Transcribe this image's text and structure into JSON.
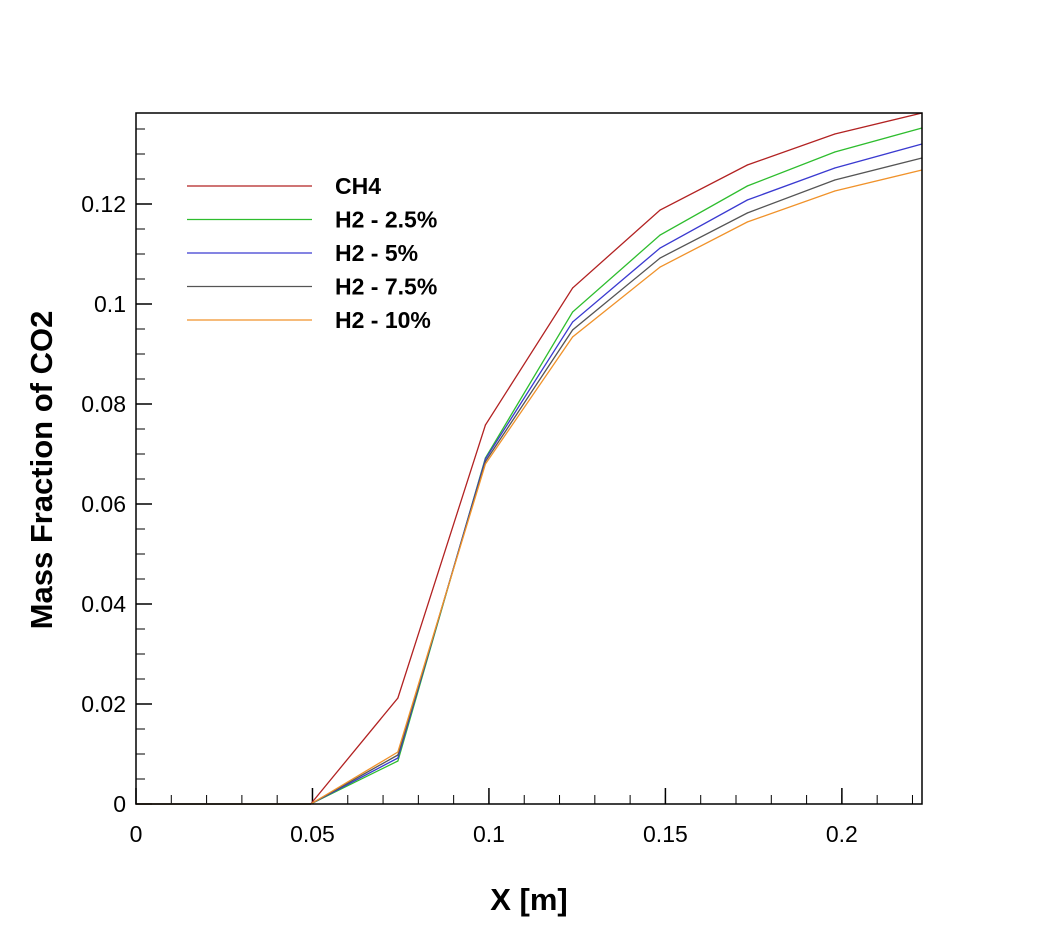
{
  "chart_data": {
    "type": "line",
    "title": "",
    "xlabel": "X [m]",
    "ylabel": "Mass Fraction of CO2",
    "xlim": [
      0,
      0.2227
    ],
    "ylim": [
      0,
      0.1382
    ],
    "grid": false,
    "legend_position": "top-left",
    "x_ticks": [
      0,
      0.05,
      0.1,
      0.15,
      0.2
    ],
    "x_tick_labels": [
      "0",
      "0.05",
      "0.1",
      "0.15",
      "0.2"
    ],
    "y_ticks": [
      0,
      0.02,
      0.04,
      0.06,
      0.08,
      0.1,
      0.12
    ],
    "y_tick_labels": [
      "0",
      "0.02",
      "0.04",
      "0.06",
      "0.08",
      "0.1",
      "0.12"
    ],
    "x": [
      0,
      0.0495,
      0.0742,
      0.099,
      0.1237,
      0.1485,
      0.1732,
      0.198,
      0.2227
    ],
    "series": [
      {
        "name": "CH4",
        "color": "#b22222",
        "values": [
          0,
          0,
          0.0212,
          0.0758,
          0.1032,
          0.1188,
          0.1278,
          0.134,
          0.1382
        ]
      },
      {
        "name": "H2 - 2.5%",
        "color": "#2ebd2e",
        "values": [
          0,
          0,
          0.0086,
          0.0692,
          0.0984,
          0.1138,
          0.1236,
          0.1304,
          0.1352
        ]
      },
      {
        "name": "H2 - 5%",
        "color": "#3a3ad0",
        "values": [
          0,
          0,
          0.0092,
          0.069,
          0.0964,
          0.1112,
          0.1208,
          0.1272,
          0.132
        ]
      },
      {
        "name": "H2 - 7.5%",
        "color": "#555555",
        "values": [
          0,
          0,
          0.0098,
          0.0685,
          0.0948,
          0.1092,
          0.1182,
          0.1248,
          0.1292
        ]
      },
      {
        "name": "H2 - 10%",
        "color": "#f0922a",
        "values": [
          0,
          0,
          0.0104,
          0.068,
          0.0934,
          0.1074,
          0.1164,
          0.1226,
          0.1268
        ]
      }
    ]
  }
}
